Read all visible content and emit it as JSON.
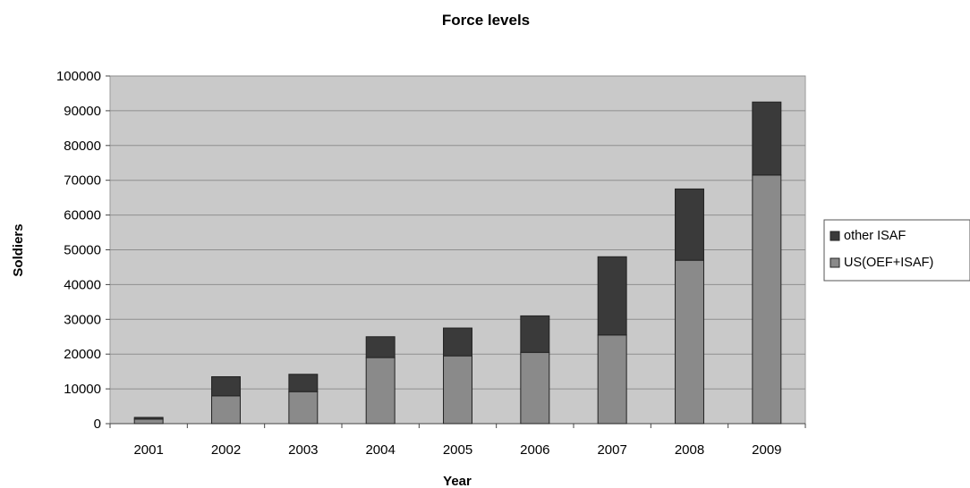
{
  "chart_data": {
    "type": "bar",
    "stacked": true,
    "title": "Force levels",
    "xlabel": "Year",
    "ylabel": "Soldiers",
    "categories": [
      "2001",
      "2002",
      "2003",
      "2004",
      "2005",
      "2006",
      "2007",
      "2008",
      "2009"
    ],
    "series": [
      {
        "name": "US(OEF+ISAF)",
        "values": [
          1300,
          8000,
          9200,
          19000,
          19500,
          20500,
          25500,
          47000,
          71500
        ],
        "color": "#8a8a8a"
      },
      {
        "name": "other ISAF",
        "values": [
          500,
          5500,
          5000,
          6000,
          8000,
          10500,
          22500,
          20500,
          21000
        ],
        "color": "#3a3a3a"
      }
    ],
    "ylim": [
      0,
      100000
    ],
    "yticks": [
      "0",
      "10000",
      "20000",
      "30000",
      "40000",
      "50000",
      "60000",
      "70000",
      "80000",
      "90000",
      "100000"
    ],
    "grid": true,
    "legend_position": "right",
    "legend_order": [
      "other ISAF",
      "US(OEF+ISAF)"
    ],
    "plot_background": "#c9c9c9"
  }
}
